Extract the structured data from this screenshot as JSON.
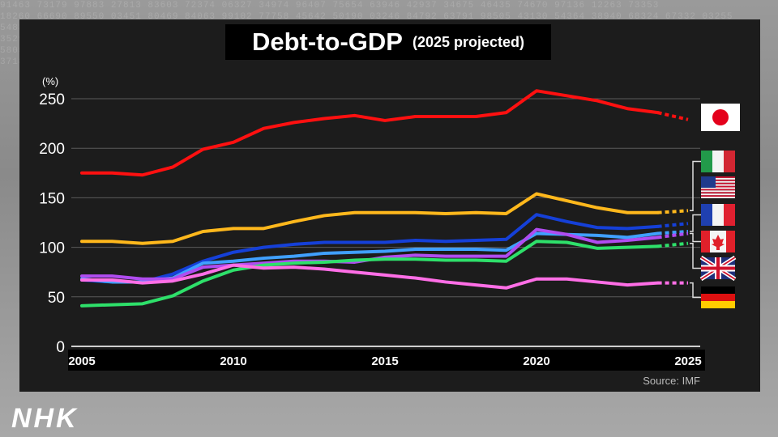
{
  "broadcaster": "NHK",
  "chart_data": {
    "type": "line",
    "title": "Debt-to-GDP",
    "subtitle": "(2025 projected)",
    "ylabel": "(%)",
    "xlabel": "",
    "source": "Source: IMF",
    "ylim": [
      0,
      250
    ],
    "yticks": [
      0,
      50,
      100,
      150,
      200,
      250
    ],
    "xlim": [
      2005,
      2025
    ],
    "xticks": [
      2005,
      2010,
      2015,
      2020,
      2025
    ],
    "projected_from": 2024,
    "x": [
      2005,
      2006,
      2007,
      2008,
      2009,
      2010,
      2011,
      2012,
      2013,
      2014,
      2015,
      2016,
      2017,
      2018,
      2019,
      2020,
      2021,
      2022,
      2023,
      2024,
      2025
    ],
    "series": [
      {
        "name": "Japan",
        "color": "#ff1010",
        "values": [
          175,
          175,
          173,
          181,
          199,
          206,
          220,
          226,
          230,
          233,
          228,
          232,
          232,
          232,
          236,
          258,
          253,
          248,
          240,
          236,
          229
        ]
      },
      {
        "name": "Italy",
        "color": "#ffb81c",
        "values": [
          106,
          106,
          104,
          106,
          116,
          119,
          119,
          126,
          132,
          135,
          135,
          135,
          134,
          135,
          134,
          154,
          147,
          140,
          135,
          135,
          137
        ]
      },
      {
        "name": "United States",
        "color": "#1540d8",
        "values": [
          67,
          65,
          65,
          73,
          86,
          95,
          100,
          103,
          105,
          105,
          105,
          107,
          106,
          107,
          108,
          133,
          126,
          120,
          119,
          121,
          124
        ]
      },
      {
        "name": "France",
        "color": "#40a0ff",
        "values": [
          68,
          65,
          65,
          69,
          84,
          86,
          89,
          91,
          94,
          95,
          96,
          98,
          98,
          98,
          97,
          114,
          113,
          112,
          110,
          114,
          116
        ]
      },
      {
        "name": "Canada",
        "color": "#b04cf0",
        "values": [
          71,
          71,
          68,
          68,
          80,
          82,
          84,
          86,
          86,
          85,
          90,
          92,
          91,
          91,
          91,
          118,
          113,
          105,
          107,
          110,
          114
        ]
      },
      {
        "name": "United Kingdom",
        "color": "#2ee06a",
        "values": [
          41,
          42,
          43,
          51,
          66,
          77,
          82,
          84,
          85,
          87,
          88,
          88,
          87,
          87,
          86,
          106,
          105,
          99,
          100,
          101,
          104
        ]
      },
      {
        "name": "Germany",
        "color": "#ff6ee6",
        "values": [
          67,
          67,
          64,
          66,
          73,
          82,
          79,
          80,
          78,
          75,
          72,
          69,
          65,
          62,
          59,
          68,
          68,
          65,
          62,
          64,
          64
        ]
      }
    ]
  },
  "legend": [
    {
      "country": "Japan",
      "flag": "japan-flag"
    },
    {
      "country": "Italy",
      "flag": "italy-flag"
    },
    {
      "country": "United States",
      "flag": "usa-flag"
    },
    {
      "country": "France",
      "flag": "france-flag"
    },
    {
      "country": "Canada",
      "flag": "canada-flag"
    },
    {
      "country": "United Kingdom",
      "flag": "uk-flag"
    },
    {
      "country": "Germany",
      "flag": "germany-flag"
    }
  ]
}
